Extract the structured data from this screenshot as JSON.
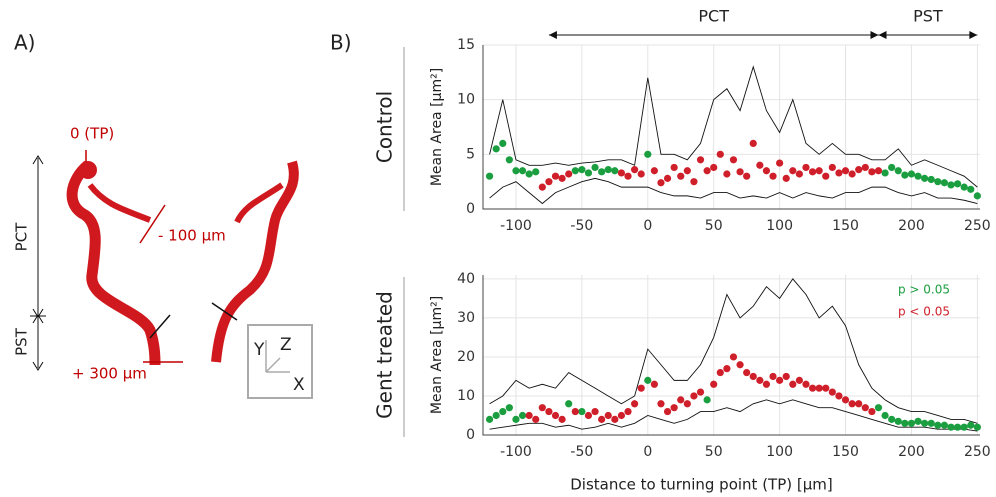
{
  "panel_a": {
    "label": "A)",
    "annotations": [
      "0 (TP)",
      "- 100 µm",
      "+ 300 µm"
    ],
    "segments": [
      "PCT",
      "PST"
    ],
    "axes": [
      "Y",
      "Z",
      "X"
    ]
  },
  "panel_b_label": "B)",
  "chart_data": [
    {
      "type": "scatter",
      "row_label": "Control",
      "ylabel": "Mean Area [µm²]",
      "xlim": [
        -125,
        252
      ],
      "ylim": [
        0,
        15
      ],
      "xticks": [
        -100,
        -50,
        0,
        50,
        100,
        150,
        200,
        250
      ],
      "yticks": [
        0,
        5,
        10,
        15
      ],
      "grid": true,
      "segments": [
        {
          "label": "PCT",
          "start": -75,
          "end": 175
        },
        {
          "label": "PST",
          "start": 175,
          "end": 250
        }
      ],
      "series": [
        {
          "color": "#1a9e3f",
          "x": [
            -120,
            -115,
            -110,
            -105,
            -100,
            -95,
            -90,
            -85,
            -55,
            -50,
            -45,
            -40,
            -35,
            -30,
            -25,
            0,
            180,
            185,
            190,
            195,
            200,
            205,
            210,
            215,
            220,
            225,
            230,
            235,
            240,
            245,
            250
          ],
          "values": [
            3,
            5.5,
            6,
            4.5,
            3.5,
            3.5,
            3.2,
            3.4,
            3.5,
            3.6,
            3.3,
            3.8,
            3.4,
            3.6,
            3.5,
            5,
            3.3,
            3.8,
            3.5,
            3.1,
            3.2,
            3,
            2.8,
            2.7,
            2.5,
            2.4,
            2.2,
            2.3,
            2,
            1.8,
            1.2
          ]
        },
        {
          "color": "#cf1f2a",
          "x": [
            -80,
            -75,
            -70,
            -65,
            -60,
            -20,
            -15,
            -10,
            -5,
            5,
            10,
            15,
            20,
            25,
            30,
            35,
            40,
            45,
            50,
            55,
            60,
            65,
            70,
            75,
            80,
            85,
            90,
            95,
            100,
            105,
            110,
            115,
            120,
            125,
            130,
            135,
            140,
            145,
            150,
            155,
            160,
            165,
            170,
            175
          ],
          "values": [
            2,
            2.5,
            3,
            2.8,
            3.2,
            3.3,
            3,
            3.6,
            3.2,
            3.5,
            2.4,
            2.8,
            3.8,
            3,
            3.5,
            2.5,
            4.5,
            3.5,
            3.8,
            5,
            3.2,
            4.5,
            3.4,
            3,
            6,
            4,
            3.5,
            3,
            4.2,
            2.8,
            3.5,
            3.2,
            3.8,
            3.4,
            3.5,
            3,
            3.8,
            3.3,
            3.5,
            3.2,
            3.6,
            3.8,
            3.4,
            3.5
          ]
        }
      ],
      "envelope": [
        {
          "x": [
            -120,
            -110,
            -100,
            -90,
            -80,
            -70,
            -60,
            -50,
            -40,
            -30,
            -20,
            -10,
            0,
            10,
            20,
            30,
            40,
            50,
            60,
            70,
            80,
            90,
            100,
            110,
            120,
            130,
            140,
            150,
            160,
            170,
            180,
            190,
            200,
            210,
            220,
            230,
            240,
            250
          ],
          "values": [
            5,
            10,
            4.5,
            4,
            4,
            4.2,
            4,
            4.2,
            4.3,
            4.5,
            4.5,
            4,
            12,
            5,
            5,
            4.5,
            6,
            10,
            11,
            9,
            13,
            9,
            7,
            10,
            6,
            5,
            6,
            5,
            5,
            4.5,
            4.5,
            5.5,
            4,
            4.5,
            4,
            3.5,
            3,
            2
          ]
        },
        {
          "x": [
            -120,
            -110,
            -100,
            -90,
            -80,
            -70,
            -60,
            -50,
            -40,
            -30,
            -20,
            -10,
            0,
            10,
            20,
            30,
            40,
            50,
            60,
            70,
            80,
            90,
            100,
            110,
            120,
            130,
            140,
            150,
            160,
            170,
            180,
            190,
            200,
            210,
            220,
            230,
            240,
            250
          ],
          "values": [
            1,
            2,
            2.5,
            1.5,
            0.5,
            1.5,
            2,
            2.5,
            2.8,
            2.5,
            2,
            2,
            2,
            1.5,
            1.2,
            1.2,
            1,
            1.5,
            1.5,
            1,
            1.2,
            1,
            1.5,
            1,
            1.5,
            1.2,
            1,
            1.5,
            1.5,
            2,
            2,
            1.5,
            1.2,
            1.5,
            1,
            1,
            0.8,
            0.5
          ]
        }
      ]
    },
    {
      "type": "scatter",
      "row_label": "Gent treated",
      "ylabel": "Mean Area [µm²]",
      "xlabel": "Distance to turning point (TP) [µm]",
      "xlim": [
        -125,
        252
      ],
      "ylim": [
        0,
        41
      ],
      "xticks": [
        -100,
        -50,
        0,
        50,
        100,
        150,
        200,
        250
      ],
      "yticks": [
        0,
        10,
        20,
        30,
        40
      ],
      "grid": true,
      "legend": "upper right",
      "series": [
        {
          "name": "p > 0.05",
          "color": "#1a9e3f",
          "x": [
            -120,
            -115,
            -110,
            -105,
            -100,
            -95,
            -60,
            -50,
            0,
            45,
            175,
            180,
            185,
            190,
            195,
            200,
            205,
            210,
            215,
            220,
            225,
            230,
            235,
            240,
            245,
            250
          ],
          "values": [
            4,
            5,
            6,
            7,
            4,
            5,
            8,
            6,
            14,
            9,
            7,
            5,
            4,
            3.5,
            3,
            3,
            3.5,
            3,
            3,
            2.5,
            2.5,
            2,
            2,
            2,
            2.5,
            2
          ]
        },
        {
          "name": "p < 0.05",
          "color": "#cf1f2a",
          "x": [
            -90,
            -85,
            -80,
            -75,
            -70,
            -65,
            -55,
            -45,
            -40,
            -35,
            -30,
            -25,
            -20,
            -15,
            -10,
            -5,
            5,
            10,
            15,
            20,
            25,
            30,
            35,
            40,
            50,
            55,
            60,
            65,
            70,
            75,
            80,
            85,
            90,
            95,
            100,
            105,
            110,
            115,
            120,
            125,
            130,
            135,
            140,
            145,
            150,
            155,
            160,
            165,
            170
          ],
          "values": [
            5,
            4,
            7,
            6,
            5,
            4,
            6,
            5,
            6,
            4,
            5,
            4,
            5,
            6,
            8,
            12,
            13,
            8,
            6,
            7,
            9,
            8,
            10,
            11,
            13,
            16,
            17,
            20,
            18,
            16,
            15,
            14,
            13,
            15,
            14,
            15,
            13,
            14,
            13,
            12,
            12,
            12,
            11,
            10,
            9,
            8,
            8,
            7,
            6
          ]
        }
      ],
      "envelope": [
        {
          "x": [
            -120,
            -110,
            -100,
            -90,
            -80,
            -70,
            -60,
            -50,
            -40,
            -30,
            -20,
            -10,
            0,
            10,
            20,
            30,
            40,
            50,
            60,
            70,
            80,
            90,
            100,
            110,
            120,
            130,
            140,
            150,
            160,
            170,
            180,
            190,
            200,
            210,
            220,
            230,
            240,
            250
          ],
          "values": [
            8,
            10,
            14,
            12,
            13,
            12,
            16,
            14,
            12,
            10,
            8,
            10,
            22,
            18,
            14,
            14,
            18,
            25,
            36,
            30,
            33,
            38,
            35,
            40,
            36,
            30,
            33,
            28,
            18,
            12,
            9,
            7,
            6,
            6,
            5,
            4,
            4,
            3
          ]
        },
        {
          "x": [
            -120,
            -110,
            -100,
            -90,
            -80,
            -70,
            -60,
            -50,
            -40,
            -30,
            -20,
            -10,
            0,
            10,
            20,
            30,
            40,
            50,
            60,
            70,
            80,
            90,
            100,
            110,
            120,
            130,
            140,
            150,
            160,
            170,
            180,
            190,
            200,
            210,
            220,
            230,
            240,
            250
          ],
          "values": [
            1.5,
            2,
            2.5,
            3,
            3,
            2,
            2.5,
            1.5,
            2,
            3,
            2,
            3,
            5,
            4,
            3,
            4,
            6,
            6,
            7,
            6,
            8,
            9,
            8,
            9,
            8,
            7,
            7,
            6,
            5,
            4,
            3,
            2,
            2,
            2,
            1.5,
            1.5,
            1.5,
            1
          ]
        }
      ]
    }
  ]
}
